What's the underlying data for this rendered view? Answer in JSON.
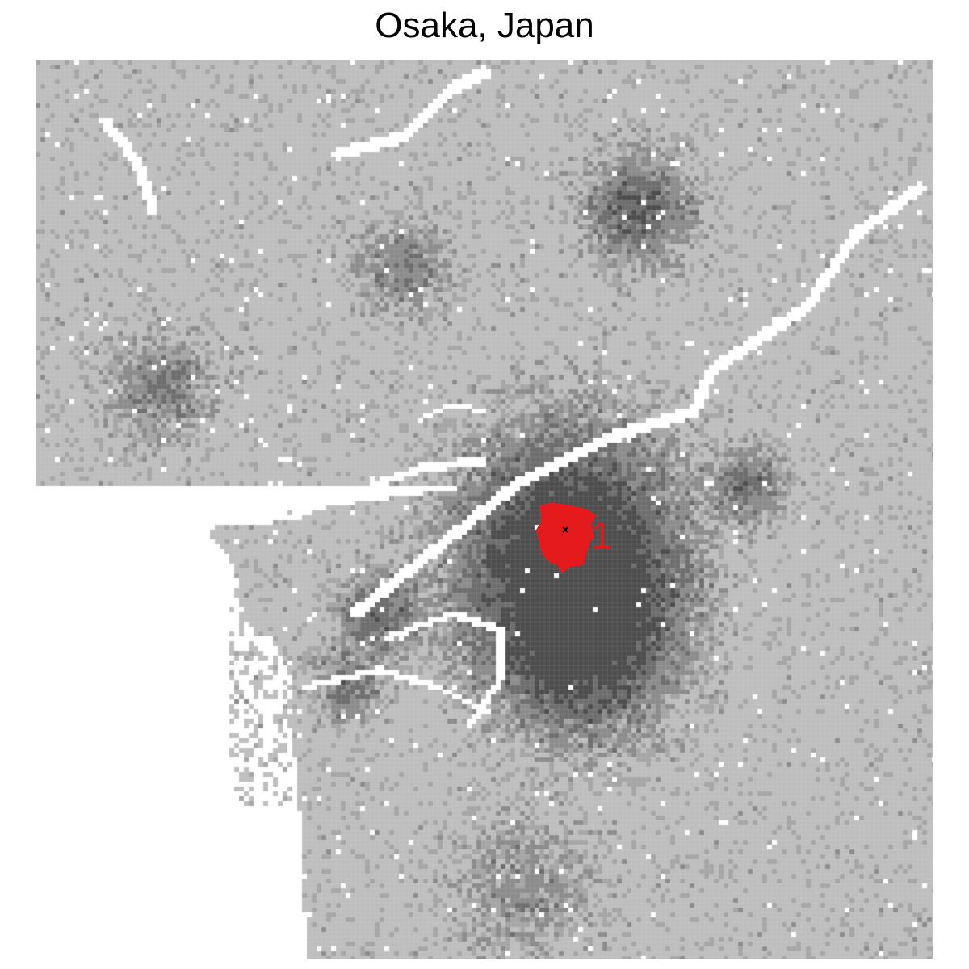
{
  "title": "Osaka, Japan",
  "map": {
    "colors": {
      "water": "#ffffff",
      "land_light": "#bebebe",
      "land_mid": "#8c8c8c",
      "land_dark": "#555555",
      "cluster": "#e41a1c",
      "center_marker": "#000000",
      "grid_line": "#d9d9d9"
    },
    "cluster_label": "1",
    "center_marker_icon": "x-mark-icon"
  }
}
